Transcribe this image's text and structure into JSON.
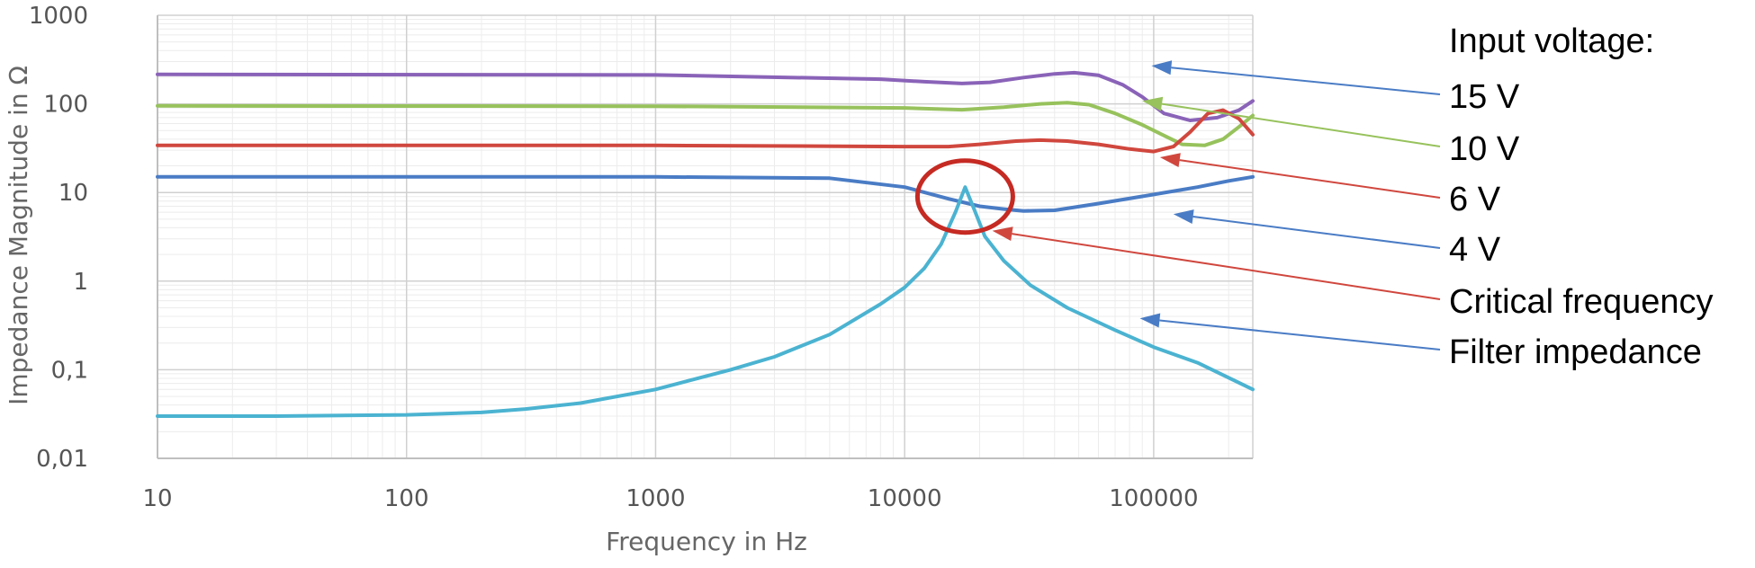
{
  "chart_data": {
    "type": "line",
    "xlabel": "Frequency in Hz",
    "ylabel": "Impedance Magnitude in Ω",
    "x_scale": "log",
    "y_scale": "log",
    "xlim": [
      10,
      250000
    ],
    "ylim": [
      0.01,
      1000
    ],
    "x_ticks": [
      10,
      100,
      1000,
      10000,
      100000
    ],
    "x_tick_labels": [
      "10",
      "100",
      "1000",
      "10000",
      "100000"
    ],
    "y_ticks": [
      0.01,
      0.1,
      1,
      10,
      100,
      1000
    ],
    "y_tick_labels": [
      "0,01",
      "0,1",
      "1",
      "10",
      "100",
      "1000"
    ],
    "grid": true,
    "legend_title": "Input voltage:",
    "series": [
      {
        "name": "15 V",
        "color": "#8a63b8",
        "x": [
          10,
          1000,
          8000,
          12000,
          17000,
          22000,
          30000,
          40000,
          48000,
          60000,
          75000,
          90000,
          110000,
          140000,
          180000,
          220000,
          250000
        ],
        "y": [
          215,
          212,
          190,
          178,
          170,
          175,
          198,
          218,
          225,
          210,
          165,
          120,
          78,
          65,
          70,
          85,
          108
        ]
      },
      {
        "name": "10 V",
        "color": "#97c25c",
        "x": [
          10,
          1000,
          10000,
          17000,
          25000,
          35000,
          45000,
          55000,
          70000,
          90000,
          110000,
          130000,
          160000,
          190000,
          220000,
          250000
        ],
        "y": [
          95,
          94,
          90,
          86,
          92,
          100,
          103,
          98,
          78,
          58,
          44,
          35,
          34,
          40,
          55,
          74
        ]
      },
      {
        "name": "6 V",
        "color": "#d0473e",
        "x": [
          10,
          1000,
          10000,
          15000,
          20000,
          28000,
          35000,
          45000,
          60000,
          80000,
          100000,
          120000,
          140000,
          165000,
          190000,
          220000,
          250000
        ],
        "y": [
          34,
          34,
          33,
          33,
          35,
          38,
          39,
          38,
          35,
          31,
          29,
          33,
          48,
          78,
          85,
          68,
          45
        ]
      },
      {
        "name": "4 V",
        "color": "#4a7cc5",
        "x": [
          10,
          1000,
          5000,
          10000,
          15000,
          20000,
          25000,
          30000,
          40000,
          60000,
          100000,
          150000,
          200000,
          250000
        ],
        "y": [
          15,
          15,
          14.5,
          11.5,
          8.5,
          7,
          6.5,
          6.2,
          6.3,
          7.5,
          9.5,
          11.5,
          13.5,
          15
        ]
      },
      {
        "name": "Filter impedance",
        "color": "#4bb3d1",
        "x": [
          10,
          30,
          100,
          200,
          300,
          500,
          1000,
          2000,
          3000,
          5000,
          8000,
          10000,
          12000,
          14000,
          16000,
          17500,
          19000,
          21000,
          25000,
          32000,
          45000,
          70000,
          100000,
          150000,
          250000
        ],
        "y": [
          0.03,
          0.03,
          0.031,
          0.033,
          0.036,
          0.042,
          0.06,
          0.1,
          0.14,
          0.25,
          0.55,
          0.85,
          1.4,
          2.6,
          6,
          11.5,
          6.5,
          3.2,
          1.7,
          0.9,
          0.5,
          0.28,
          0.18,
          0.12,
          0.06
        ]
      }
    ],
    "legend": {
      "position": "right",
      "entries": [
        "15 V",
        "10 V",
        "6 V",
        "4 V",
        "Critical frequency",
        "Filter impedance"
      ]
    },
    "annotations": {
      "circle": {
        "x": 17500,
        "y": 9,
        "color": "#c52a23"
      },
      "arrows": [
        {
          "label": "15 V",
          "color": "#4a7cc5",
          "x": 98000,
          "y": 270
        },
        {
          "label": "10 V",
          "color": "#97c25c",
          "x": 90000,
          "y": 108
        },
        {
          "label": "6 V",
          "color": "#d0473e",
          "x": 106000,
          "y": 25
        },
        {
          "label": "4 V",
          "color": "#4a7cc5",
          "x": 120000,
          "y": 5.7
        },
        {
          "label": "Critical frequency",
          "color": "#d0473e",
          "x": 22500,
          "y": 3.7
        },
        {
          "label": "Filter impedance",
          "color": "#4a7cc5",
          "x": 88000,
          "y": 0.38
        }
      ]
    }
  }
}
